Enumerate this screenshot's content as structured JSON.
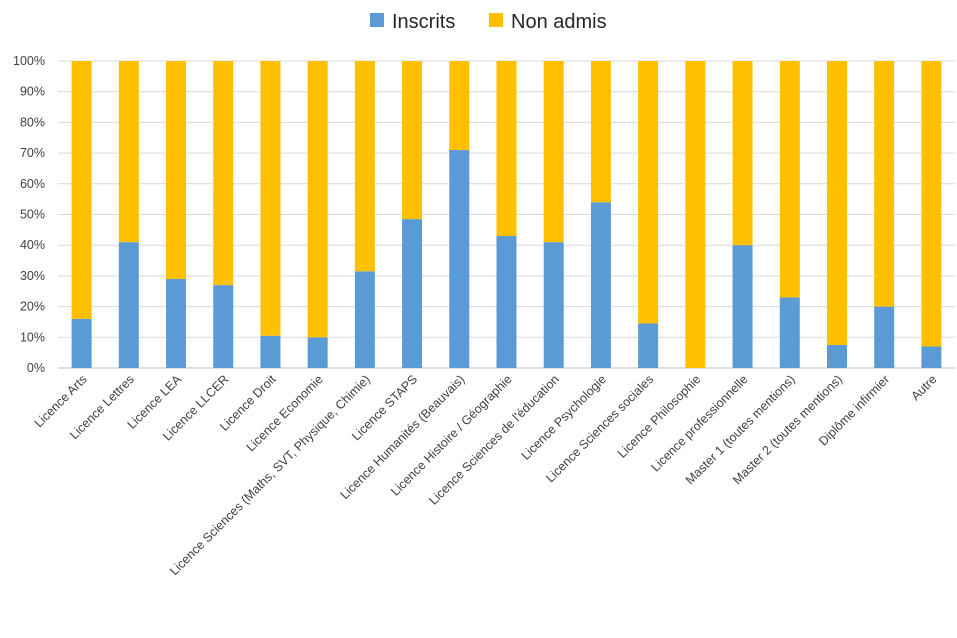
{
  "chart_data": {
    "type": "bar",
    "stacked": true,
    "percent_stacked": true,
    "categories": [
      "Licence Arts",
      "Licence Lettres",
      "Licence LEA",
      "Licence LLCER",
      "Licence Droit",
      "Licence Economie",
      "Licence Sciences (Maths, SVT, Physique, Chimie)",
      "Licence STAPS",
      "Licence Humanités (Beauvais)",
      "Licence Histoire / Géographie",
      "Licence Sciences de l'éducation",
      "Licence Psychologie",
      "Licence Sciences sociales",
      "Licence Philosophie",
      "Licence professionnelle",
      "Master 1 (toutes mentions)",
      "Master 2 (toutes mentions)",
      "Diplôme infirmier",
      "Autre"
    ],
    "series": [
      {
        "name": "Inscrits",
        "color": "#5b9bd5",
        "values": [
          16,
          41,
          29,
          27,
          10.5,
          10,
          31.5,
          48.5,
          71,
          43,
          41,
          54,
          14.5,
          0,
          40,
          23,
          7.5,
          20,
          7
        ]
      },
      {
        "name": "Non admis",
        "color": "#ffc000",
        "values": [
          84,
          59,
          71,
          73,
          89.5,
          90,
          68.5,
          51.5,
          29,
          57,
          59,
          46,
          85.5,
          100,
          60,
          77,
          92.5,
          80,
          93
        ]
      }
    ],
    "y_ticks": [
      "0%",
      "10%",
      "20%",
      "30%",
      "40%",
      "50%",
      "60%",
      "70%",
      "80%",
      "90%",
      "100%"
    ],
    "ylim": [
      0,
      100
    ],
    "title": "",
    "xlabel": "",
    "ylabel": "",
    "grid": true,
    "legend_position": "top"
  }
}
